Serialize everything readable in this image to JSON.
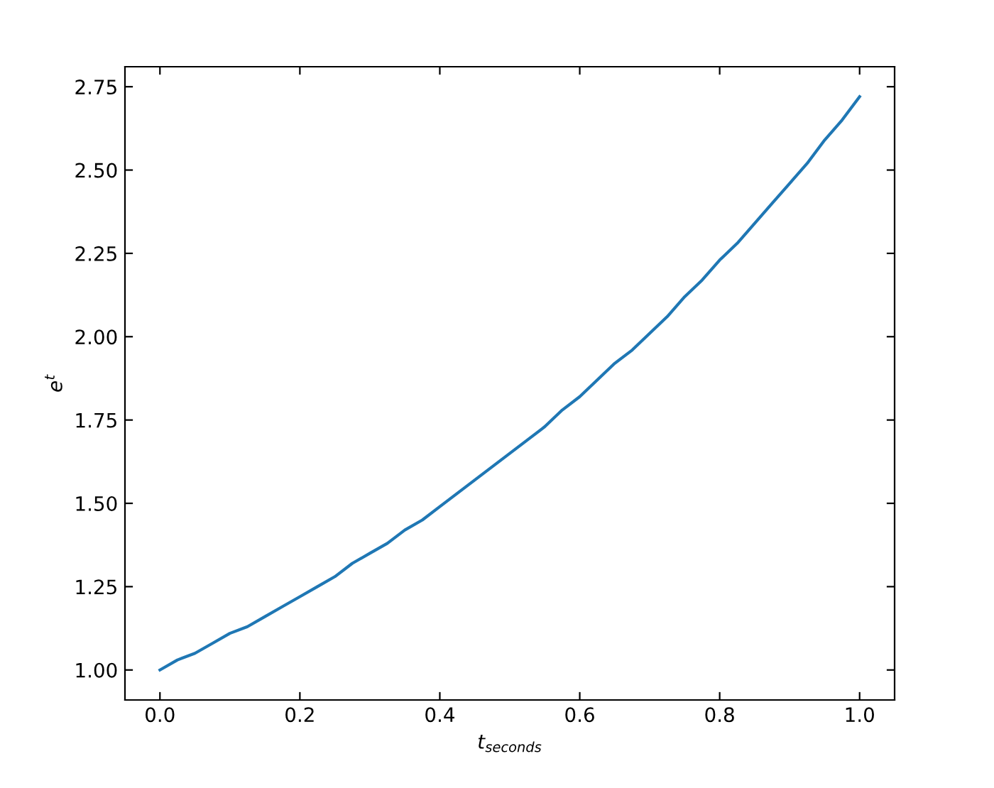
{
  "chart_data": {
    "type": "line",
    "xlabel": "t$_{seconds}$",
    "ylabel": "e$^{t}$",
    "x": [
      0,
      0.025,
      0.05,
      0.075,
      0.1,
      0.125,
      0.15,
      0.175,
      0.2,
      0.225,
      0.25,
      0.275,
      0.3,
      0.325,
      0.35,
      0.375,
      0.4,
      0.425,
      0.45,
      0.475,
      0.5,
      0.525,
      0.55,
      0.575,
      0.6,
      0.625,
      0.65,
      0.675,
      0.7,
      0.725,
      0.75,
      0.775,
      0.8,
      0.825,
      0.85,
      0.875,
      0.9,
      0.925,
      0.95,
      0.975,
      1.0
    ],
    "series": [
      {
        "color": "#1f77b4",
        "values": [
          1.0,
          1.03,
          1.05,
          1.08,
          1.11,
          1.13,
          1.16,
          1.19,
          1.22,
          1.25,
          1.28,
          1.32,
          1.35,
          1.38,
          1.42,
          1.45,
          1.49,
          1.53,
          1.57,
          1.61,
          1.65,
          1.69,
          1.73,
          1.78,
          1.82,
          1.87,
          1.92,
          1.96,
          2.01,
          2.06,
          2.12,
          2.17,
          2.23,
          2.28,
          2.34,
          2.4,
          2.46,
          2.52,
          2.59,
          2.65,
          2.72
        ]
      }
    ],
    "xlim": [
      -0.05,
      1.05
    ],
    "ylim": [
      0.91,
      2.81
    ],
    "xticks": [
      {
        "value": 0,
        "label": "0.0"
      },
      0.2,
      0.4,
      0.6,
      0.8,
      {
        "value": 1,
        "label": "1.0"
      }
    ],
    "yticks": [
      {
        "value": 1,
        "label": "1.00"
      },
      1.25,
      {
        "value": 1.5,
        "label": "1.50"
      },
      1.75,
      {
        "value": 2,
        "label": "2.00"
      },
      2.25,
      {
        "value": 2.5,
        "label": "2.50"
      },
      2.75
    ],
    "grid": false,
    "marker": "none",
    "line_style": "solid"
  }
}
